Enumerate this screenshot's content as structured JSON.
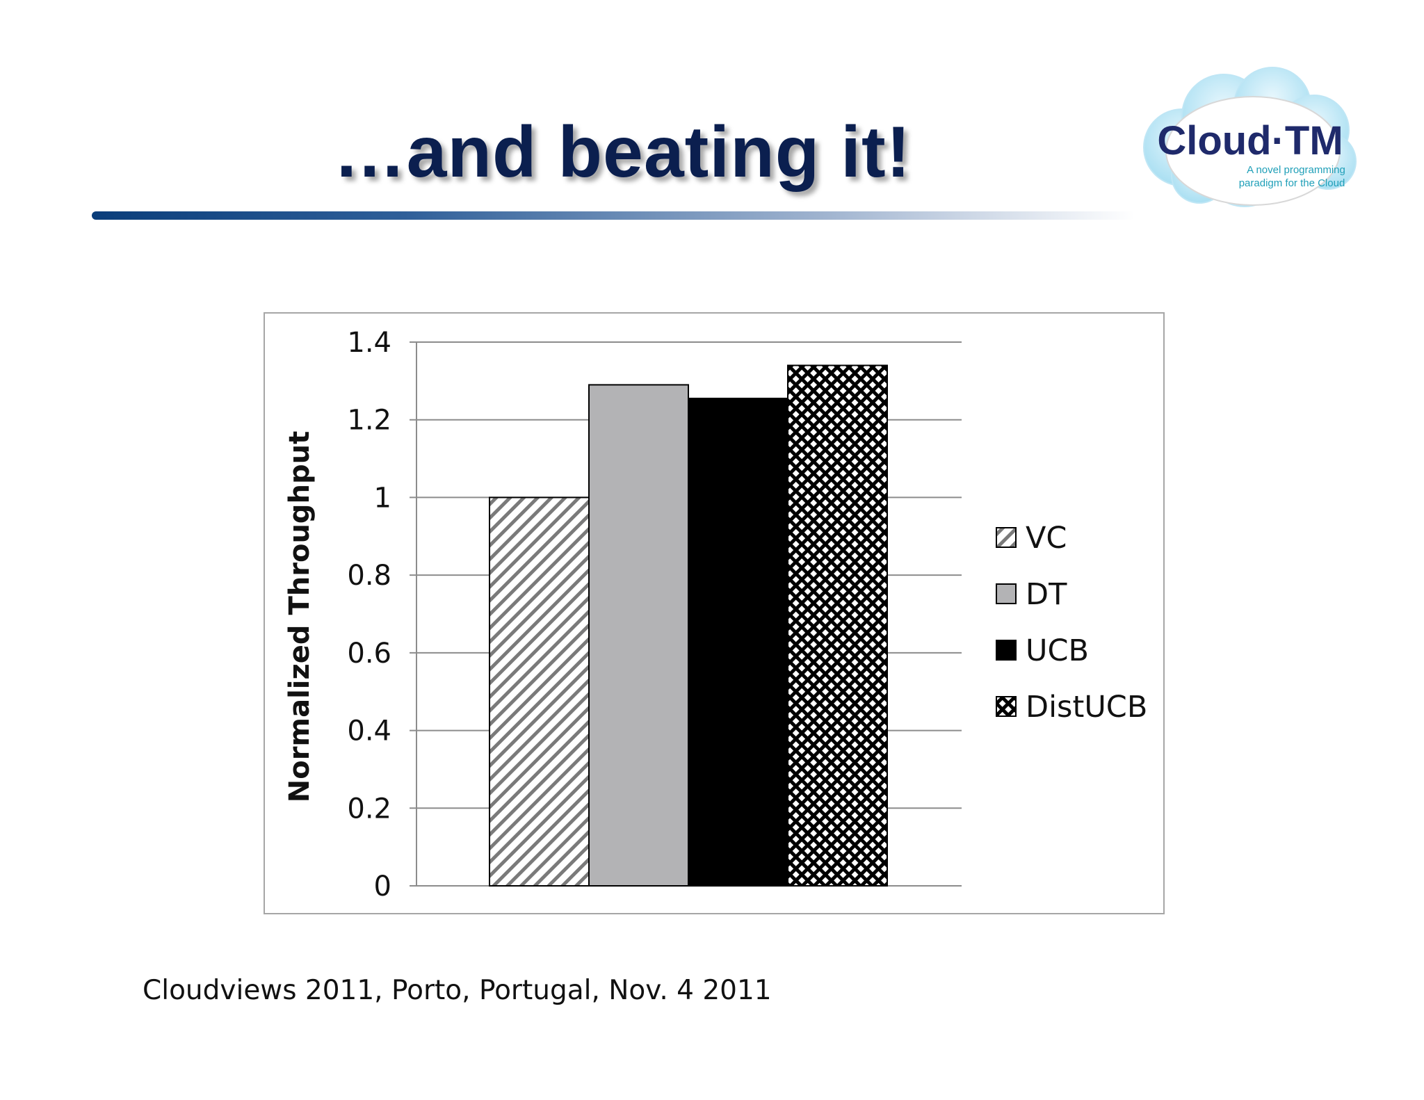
{
  "slide": {
    "title": "…and beating it!",
    "footer": "Cloudviews 2011, Porto, Portugal, Nov. 4 2011",
    "logo": {
      "name": "Cloud·TM",
      "tagline_line1": "A novel programming",
      "tagline_line2": "paradigm for the Cloud"
    }
  },
  "colors": {
    "title": "#0b1f4f",
    "DT": "#b3b3b5",
    "UCB": "#000000",
    "logo_text": "#1f2a6b",
    "logo_tagline": "#1f9fb8"
  },
  "chart_data": {
    "type": "bar",
    "title": "",
    "xlabel": "",
    "ylabel": "Normalized Throughput",
    "ylim": [
      0,
      1.4
    ],
    "yticks": [
      0,
      0.2,
      0.4,
      0.6,
      0.8,
      1,
      1.2,
      1.4
    ],
    "ytick_labels": [
      "0",
      "0.2",
      "0.4",
      "0.6",
      "0.8",
      "1",
      "1.2",
      "1.4"
    ],
    "grid": true,
    "legend_position": "right",
    "series": [
      {
        "name": "VC",
        "value": 1.0,
        "pattern": "diagonal-stripes"
      },
      {
        "name": "DT",
        "value": 1.29,
        "pattern": "solid-gray"
      },
      {
        "name": "UCB",
        "value": 1.255,
        "pattern": "solid-black"
      },
      {
        "name": "DistUCB",
        "value": 1.34,
        "pattern": "crosshatch"
      }
    ]
  }
}
